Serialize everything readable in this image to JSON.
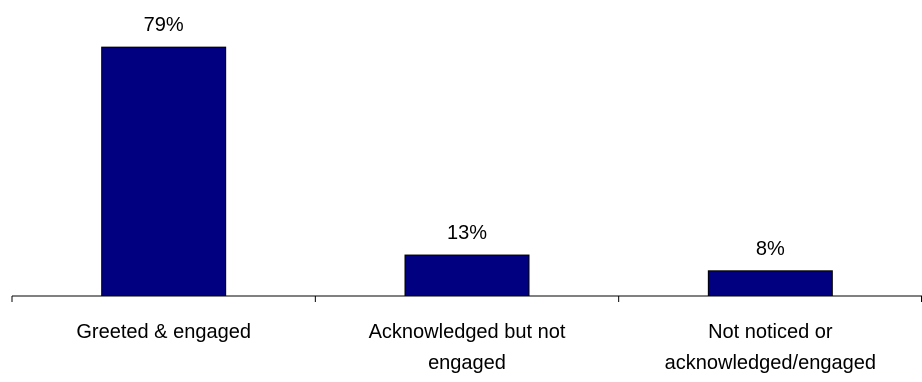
{
  "chart_data": {
    "type": "bar",
    "categories": [
      [
        "Greeted & engaged"
      ],
      [
        "Acknowledged but not",
        "engaged"
      ],
      [
        "Not noticed or",
        "acknowledged/engaged"
      ]
    ],
    "values": [
      79,
      13,
      8
    ],
    "data_labels": [
      "79%",
      "13%",
      "8%"
    ],
    "title": "",
    "xlabel": "",
    "ylabel": "",
    "ylim": [
      0,
      85
    ],
    "grid": false,
    "legend": "none",
    "bar_color": "#000080",
    "bar_stroke": "#000000"
  }
}
